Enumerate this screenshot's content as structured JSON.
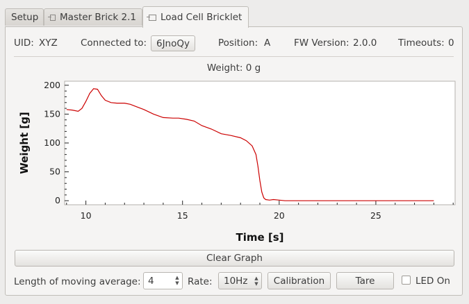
{
  "tabs": [
    {
      "label": "Setup"
    },
    {
      "label": "Master Brick 2.1"
    },
    {
      "label": "Load Cell Bricklet"
    }
  ],
  "info": {
    "uid_label": "UID:",
    "uid_value": "XYZ",
    "connected_label": "Connected to:",
    "connected_value": "6JnoQy",
    "position_label": "Position:",
    "position_value": "A",
    "fw_label": "FW Version:",
    "fw_value": "2.0.0",
    "timeouts_label": "Timeouts:",
    "timeouts_value": "0"
  },
  "chart_data": {
    "type": "line",
    "title": "Weight: 0 g",
    "xlabel": "Time [s]",
    "ylabel": "Weight [g]",
    "xlim": [
      8.9,
      29.1
    ],
    "ylim": [
      -7,
      207
    ],
    "xticks": [
      10,
      15,
      20,
      25
    ],
    "yticks": [
      0,
      50,
      100,
      150,
      200
    ],
    "grid": false,
    "color": "#cc0000",
    "series": [
      {
        "x": [
          9.0,
          9.3,
          9.6,
          9.8,
          10.0,
          10.2,
          10.4,
          10.6,
          10.8,
          11.0,
          11.3,
          11.6,
          12.0,
          12.3,
          12.6,
          13.0,
          13.5,
          14.0,
          14.5,
          14.8,
          15.2,
          15.6,
          16.0,
          16.5,
          17.0,
          17.5,
          18.0,
          18.3,
          18.6,
          18.8,
          18.9,
          19.0,
          19.1,
          19.2,
          19.3,
          19.5,
          19.7,
          20.0,
          20.3,
          21,
          22,
          24,
          26,
          28.0
        ],
        "y": [
          158,
          157,
          155,
          160,
          172,
          186,
          194,
          193,
          182,
          174,
          170,
          169,
          169,
          167,
          163,
          158,
          150,
          144,
          143,
          143,
          141,
          138,
          130,
          124,
          116,
          113,
          109,
          104,
          95,
          80,
          60,
          35,
          15,
          5,
          2,
          1,
          2,
          1,
          0,
          0,
          0,
          0,
          0,
          0
        ]
      }
    ]
  },
  "controls": {
    "clear_label": "Clear Graph",
    "moving_avg_label": "Length of moving average:",
    "moving_avg_value": "4",
    "rate_label": "Rate:",
    "rate_value": "10Hz",
    "calibration_label": "Calibration",
    "tare_label": "Tare",
    "led_label": "LED On"
  }
}
